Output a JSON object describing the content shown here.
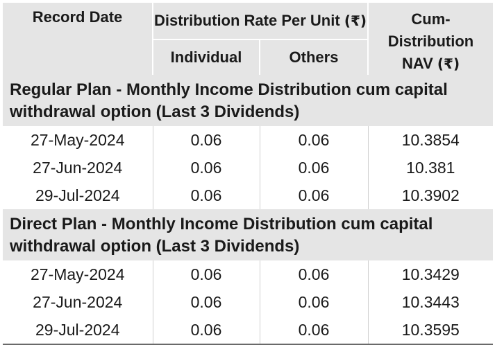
{
  "headers": {
    "record_date": "Record Date",
    "distribution_rate": "Distribution Rate Per Unit",
    "distribution_rate_unit": "(₹)",
    "individual": "Individual",
    "others": "Others",
    "cum_nav_line1": "Cum-Distribution",
    "cum_nav_line2": "NAV",
    "cum_nav_unit": "(₹)"
  },
  "sections": [
    {
      "title": "Regular Plan - Monthly Income Distribution cum capital withdrawal option (Last 3 Dividends)",
      "rows": [
        {
          "date": "27-May-2024",
          "individual": "0.06",
          "others": "0.06",
          "nav": "10.3854"
        },
        {
          "date": "27-Jun-2024",
          "individual": "0.06",
          "others": "0.06",
          "nav": "10.381"
        },
        {
          "date": "29-Jul-2024",
          "individual": "0.06",
          "others": "0.06",
          "nav": "10.3902"
        }
      ]
    },
    {
      "title": "Direct Plan - Monthly Income Distribution cum capital withdrawal option (Last 3 Dividends)",
      "rows": [
        {
          "date": "27-May-2024",
          "individual": "0.06",
          "others": "0.06",
          "nav": "10.3429"
        },
        {
          "date": "27-Jun-2024",
          "individual": "0.06",
          "others": "0.06",
          "nav": "10.3443"
        },
        {
          "date": "29-Jul-2024",
          "individual": "0.06",
          "others": "0.06",
          "nav": "10.3595"
        }
      ]
    }
  ]
}
